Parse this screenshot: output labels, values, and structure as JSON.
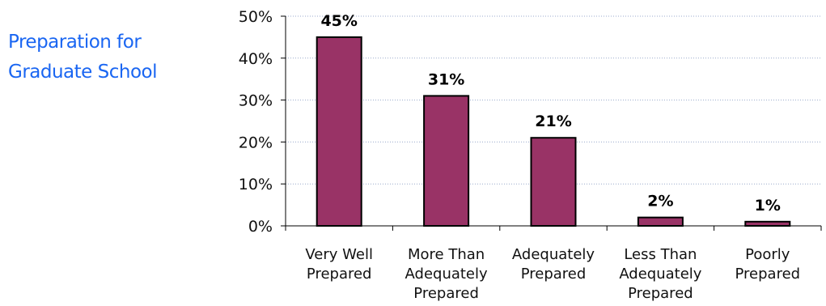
{
  "title_lines": [
    "Preparation for",
    "Graduate School"
  ],
  "colors": {
    "title": "#1a66f2",
    "bar_fill": "#993366",
    "bar_stroke": "#000000",
    "grid": "#99aacc"
  },
  "chart_data": {
    "type": "bar",
    "title": "Preparation for Graduate School",
    "categories": [
      [
        "Very Well",
        "Prepared"
      ],
      [
        "More Than",
        "Adequately",
        "Prepared"
      ],
      [
        "Adequately",
        "Prepared"
      ],
      [
        "Less Than",
        "Adequately",
        "Prepared"
      ],
      [
        "Poorly",
        "Prepared"
      ]
    ],
    "values": [
      45,
      31,
      21,
      2,
      1
    ],
    "data_labels": [
      "45%",
      "31%",
      "21%",
      "2%",
      "1%"
    ],
    "ylim": [
      0,
      50
    ],
    "yticks": [
      0,
      10,
      20,
      30,
      40,
      50
    ],
    "ytick_labels": [
      "0%",
      "10%",
      "20%",
      "30%",
      "40%",
      "50%"
    ],
    "grid": true,
    "legend": "none"
  }
}
